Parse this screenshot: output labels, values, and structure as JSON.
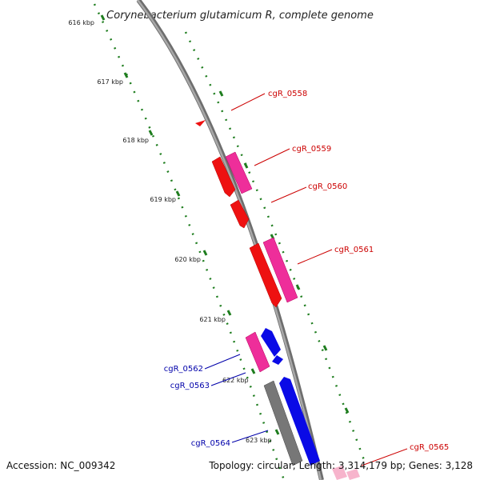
{
  "title": "Corynebacterium glutamicum R, complete genome",
  "footer": {
    "accession": "Accession: NC_009342",
    "topology": "Topology: circular; Length: 3,314,179 bp; Genes: 3,128"
  },
  "colors": {
    "backbone": "#8c8c8c",
    "tick": "#1e7d1e",
    "forward_gene_label": "#cc0000",
    "reverse_gene_label": "#0000aa",
    "gene_red": "#ee1111",
    "gene_pink": "#ee2e9a",
    "gene_blue": "#0a0ae6",
    "gene_gray": "#777777",
    "gene_light_pink": "#f7b4cc"
  },
  "scale_labels": [
    "616 kbp",
    "617 kbp",
    "618 kbp",
    "619 kbp",
    "620 kbp",
    "621 kbp",
    "622 kbp",
    "623 kbp"
  ],
  "gene_labels": {
    "forward": [
      "cgR_0558",
      "cgR_0559",
      "cgR_0560",
      "cgR_0561",
      "cgR_0565"
    ],
    "reverse": [
      "cgR_0562",
      "cgR_0563",
      "cgR_0564"
    ]
  }
}
